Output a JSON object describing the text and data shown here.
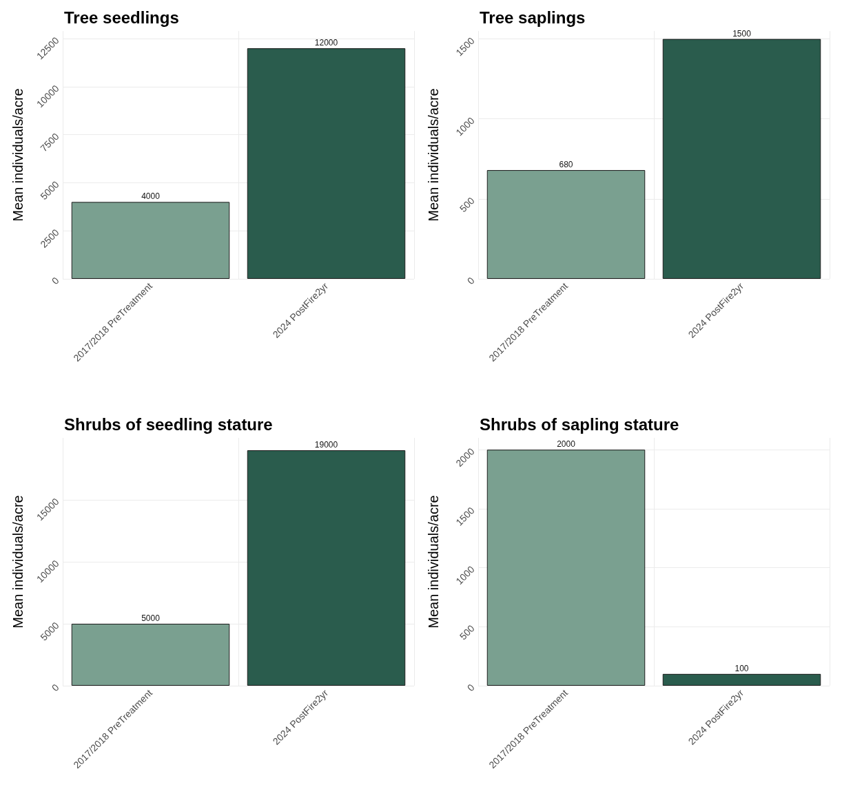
{
  "chart_data": [
    {
      "type": "bar",
      "title": "Tree seedlings",
      "ylabel": "Mean individuals/acre",
      "categories": [
        "2017/2018 PreTreatment",
        "2024 PostFire2yr"
      ],
      "values": [
        4000,
        12000
      ],
      "colors": [
        "#7aa090",
        "#2a5c4d"
      ],
      "ylim": [
        0,
        12900
      ],
      "yticks": [
        0,
        2500,
        5000,
        7500,
        10000,
        12500
      ],
      "grid": true,
      "data_labels": true
    },
    {
      "type": "bar",
      "title": "Tree saplings",
      "ylabel": "Mean individuals/acre",
      "categories": [
        "2017/2018 PreTreatment",
        "2024 PostFire2yr"
      ],
      "values": [
        680,
        1500
      ],
      "colors": [
        "#7aa090",
        "#2a5c4d"
      ],
      "ylim": [
        0,
        1550
      ],
      "yticks": [
        0,
        500,
        1000,
        1500
      ],
      "grid": true,
      "data_labels": true
    },
    {
      "type": "bar",
      "title": "Shrubs of seedling stature",
      "ylabel": "Mean individuals/acre",
      "categories": [
        "2017/2018 PreTreatment",
        "2024 PostFire2yr"
      ],
      "values": [
        5000,
        19000
      ],
      "colors": [
        "#7aa090",
        "#2a5c4d"
      ],
      "ylim": [
        0,
        20000
      ],
      "yticks": [
        0,
        5000,
        10000,
        15000
      ],
      "grid": true,
      "data_labels": true
    },
    {
      "type": "bar",
      "title": "Shrubs of sapling stature",
      "ylabel": "Mean individuals/acre",
      "categories": [
        "2017/2018 PreTreatment",
        "2024 PostFire2yr"
      ],
      "values": [
        2000,
        100
      ],
      "colors": [
        "#7aa090",
        "#2a5c4d"
      ],
      "ylim": [
        0,
        2100
      ],
      "yticks": [
        0,
        500,
        1000,
        1500,
        2000
      ],
      "grid": true,
      "data_labels": true
    }
  ]
}
